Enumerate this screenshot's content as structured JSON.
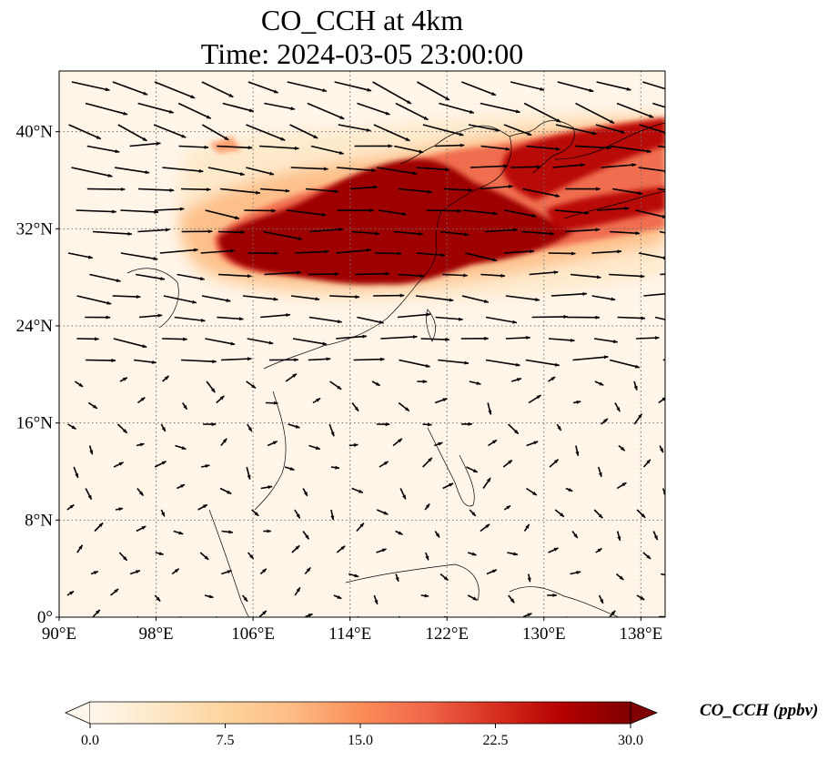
{
  "title": {
    "line1": "CO_CCH at 4km",
    "line2": "Time: 2024-03-05 23:00:00"
  },
  "map": {
    "lon_range": [
      90,
      140
    ],
    "lat_range": [
      0,
      45
    ],
    "gridlines": "dotted",
    "lon_ticks": [
      {
        "value": 90,
        "label": "90°E"
      },
      {
        "value": 98,
        "label": "98°E"
      },
      {
        "value": 106,
        "label": "106°E"
      },
      {
        "value": 114,
        "label": "114°E"
      },
      {
        "value": 122,
        "label": "122°E"
      },
      {
        "value": 130,
        "label": "130°E"
      },
      {
        "value": 138,
        "label": "138°E"
      }
    ],
    "lat_ticks": [
      {
        "value": 0,
        "label": "0°"
      },
      {
        "value": 8,
        "label": "8°N"
      },
      {
        "value": 16,
        "label": "16°N"
      },
      {
        "value": 24,
        "label": "24°N"
      },
      {
        "value": 32,
        "label": "32°N"
      },
      {
        "value": 40,
        "label": "40°N"
      }
    ]
  },
  "colorbar": {
    "label": "CO_CCH (ppbv)",
    "colormap": "OrRd",
    "extend": "both",
    "min": 0,
    "max": 30,
    "ticks": [
      {
        "value": 0,
        "label": "0.0"
      },
      {
        "value": 7.5,
        "label": "7.5"
      },
      {
        "value": 15,
        "label": "15.0"
      },
      {
        "value": 22.5,
        "label": "22.5"
      },
      {
        "value": 30,
        "label": "30.0"
      }
    ],
    "colors": [
      "#fff7ec",
      "#fee8c8",
      "#fdd49e",
      "#fdbb84",
      "#fc8d59",
      "#ef6548",
      "#d7301f",
      "#b30000",
      "#7f0000"
    ]
  }
}
